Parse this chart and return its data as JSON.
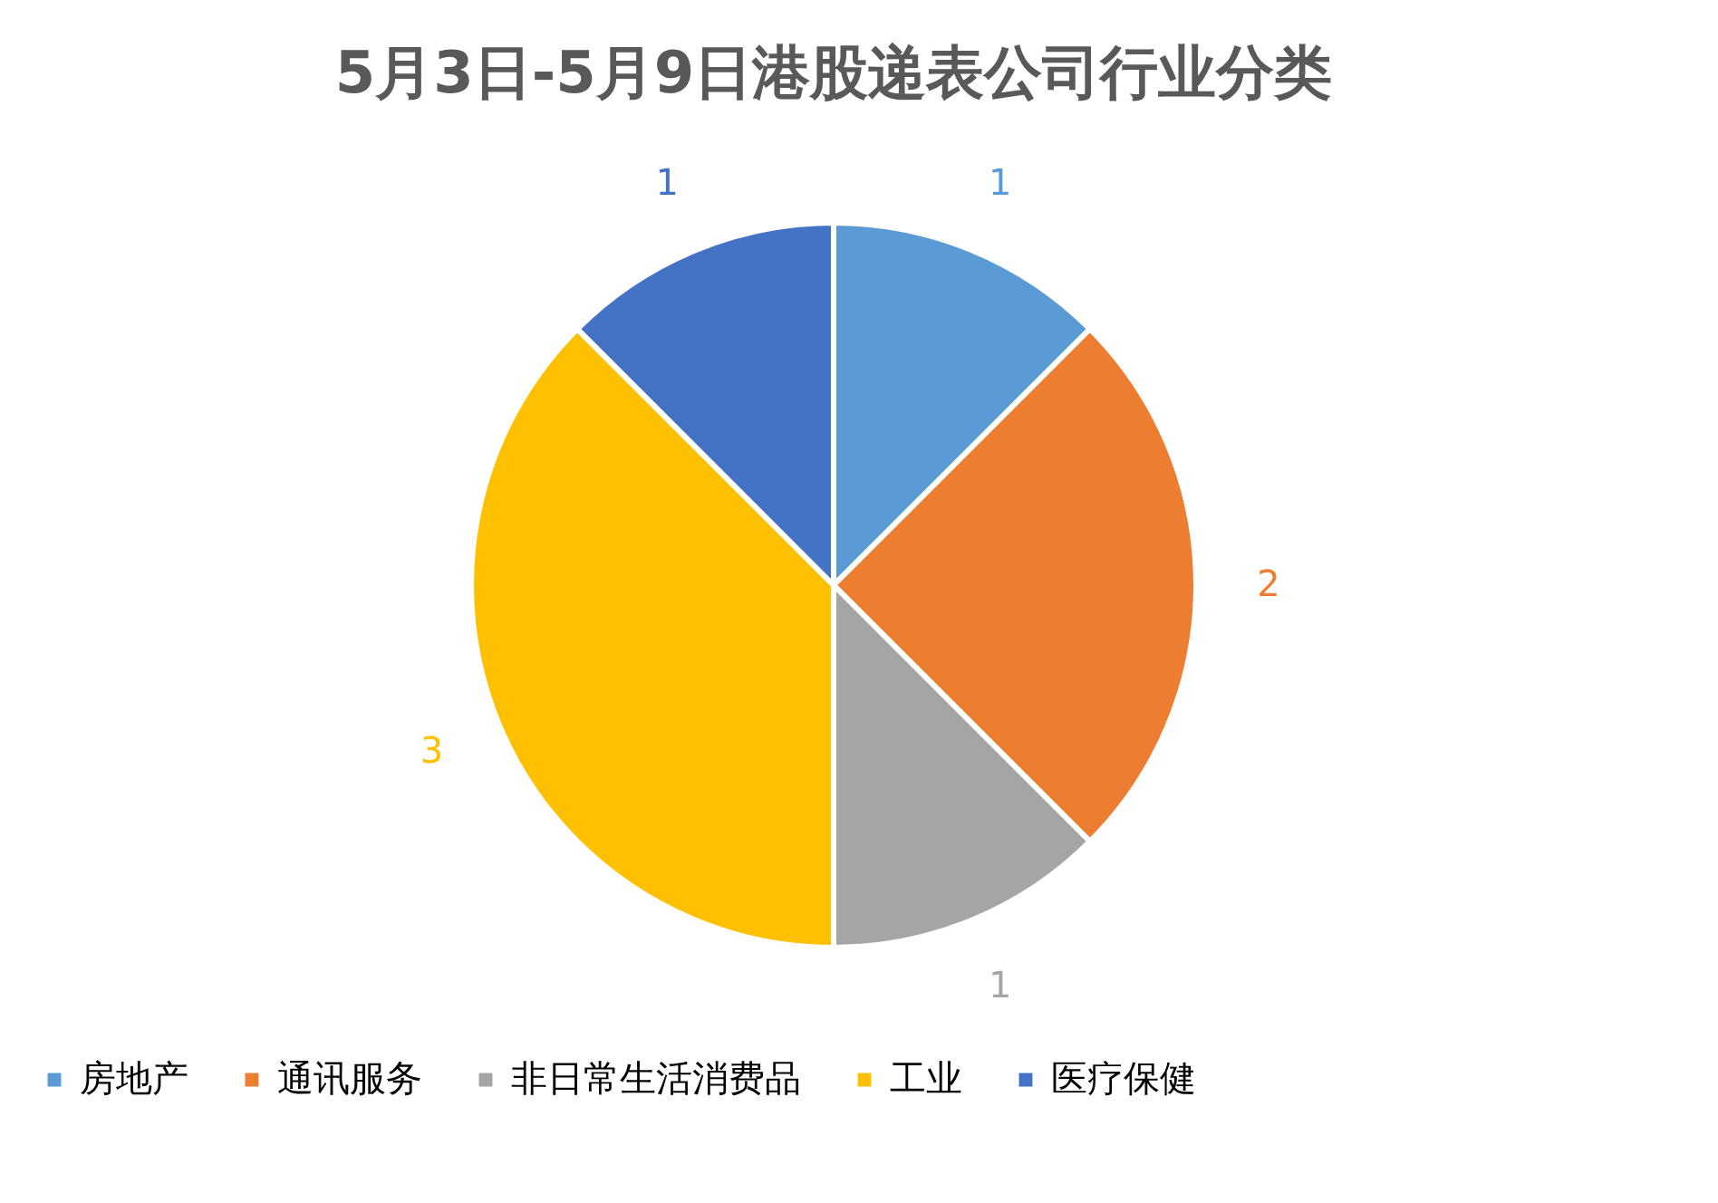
{
  "chart_data": {
    "type": "pie",
    "title": "5月3日-5月9日港股递表公司行业分类",
    "categories": [
      "房地产",
      "通讯服务",
      "非日常生活消费品",
      "工业",
      "医疗保健"
    ],
    "values": [
      1,
      2,
      1,
      3,
      1
    ],
    "colors": [
      "#5b9bd5",
      "#ed7d31",
      "#a5a5a5",
      "#ffc000",
      "#4472c4"
    ],
    "data_labels": true,
    "legend": "bottom"
  }
}
